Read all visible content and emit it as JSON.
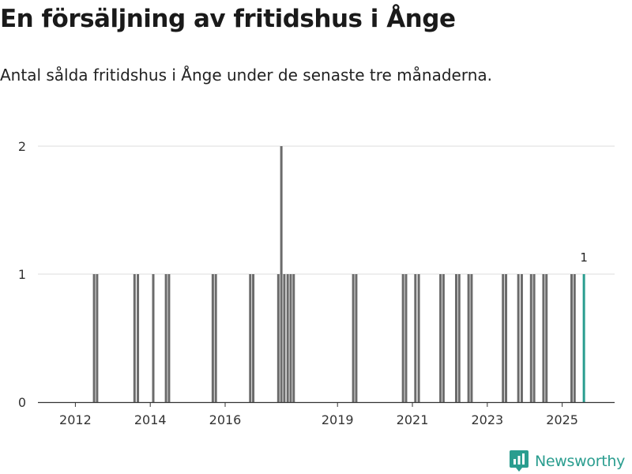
{
  "header": {
    "title": "En försäljning av fritidshus i Ånge",
    "subtitle": "Antal sålda fritidshus i Ånge under de senaste tre månaderna."
  },
  "brand": {
    "name": "Newsworthy",
    "color": "#2a9d8f"
  },
  "chart_data": {
    "type": "bar",
    "title": "En försäljning av fritidshus i Ånge",
    "subtitle": "Antal sålda fritidshus i Ånge under de senaste tre månaderna.",
    "xlabel": "",
    "ylabel": "",
    "ylim": [
      0,
      2
    ],
    "yticks": [
      0,
      1,
      2
    ],
    "xlim": [
      2011.0,
      2026.4
    ],
    "xticks": [
      {
        "label": "2012",
        "x": 2012
      },
      {
        "label": "2014",
        "x": 2014
      },
      {
        "label": "2016",
        "x": 2016
      },
      {
        "label": "2019",
        "x": 2019
      },
      {
        "label": "2021",
        "x": 2021
      },
      {
        "label": "2023",
        "x": 2023
      },
      {
        "label": "2025",
        "x": 2025
      }
    ],
    "bar_color": "#6b6b6b",
    "highlight_color": "#2a9d8f",
    "grid": true,
    "bars": [
      {
        "x": 2012.5,
        "value": 1
      },
      {
        "x": 2012.58,
        "value": 1
      },
      {
        "x": 2013.58,
        "value": 1
      },
      {
        "x": 2013.67,
        "value": 1
      },
      {
        "x": 2014.08,
        "value": 1
      },
      {
        "x": 2014.42,
        "value": 1
      },
      {
        "x": 2014.5,
        "value": 1
      },
      {
        "x": 2015.67,
        "value": 1
      },
      {
        "x": 2015.75,
        "value": 1
      },
      {
        "x": 2016.67,
        "value": 1
      },
      {
        "x": 2016.75,
        "value": 1
      },
      {
        "x": 2017.42,
        "value": 1
      },
      {
        "x": 2017.5,
        "value": 2
      },
      {
        "x": 2017.58,
        "value": 1
      },
      {
        "x": 2017.67,
        "value": 1
      },
      {
        "x": 2017.75,
        "value": 1
      },
      {
        "x": 2017.83,
        "value": 1
      },
      {
        "x": 2019.42,
        "value": 1
      },
      {
        "x": 2019.5,
        "value": 1
      },
      {
        "x": 2020.75,
        "value": 1
      },
      {
        "x": 2020.83,
        "value": 1
      },
      {
        "x": 2021.08,
        "value": 1
      },
      {
        "x": 2021.17,
        "value": 1
      },
      {
        "x": 2021.75,
        "value": 1
      },
      {
        "x": 2021.83,
        "value": 1
      },
      {
        "x": 2022.17,
        "value": 1
      },
      {
        "x": 2022.25,
        "value": 1
      },
      {
        "x": 2022.5,
        "value": 1
      },
      {
        "x": 2022.58,
        "value": 1
      },
      {
        "x": 2023.42,
        "value": 1
      },
      {
        "x": 2023.5,
        "value": 1
      },
      {
        "x": 2023.83,
        "value": 1
      },
      {
        "x": 2023.92,
        "value": 1
      },
      {
        "x": 2024.17,
        "value": 1
      },
      {
        "x": 2024.25,
        "value": 1
      },
      {
        "x": 2024.5,
        "value": 1
      },
      {
        "x": 2024.58,
        "value": 1
      },
      {
        "x": 2025.25,
        "value": 1
      },
      {
        "x": 2025.33,
        "value": 1
      },
      {
        "x": 2025.58,
        "value": 1,
        "highlight": true,
        "label": "1"
      }
    ]
  }
}
